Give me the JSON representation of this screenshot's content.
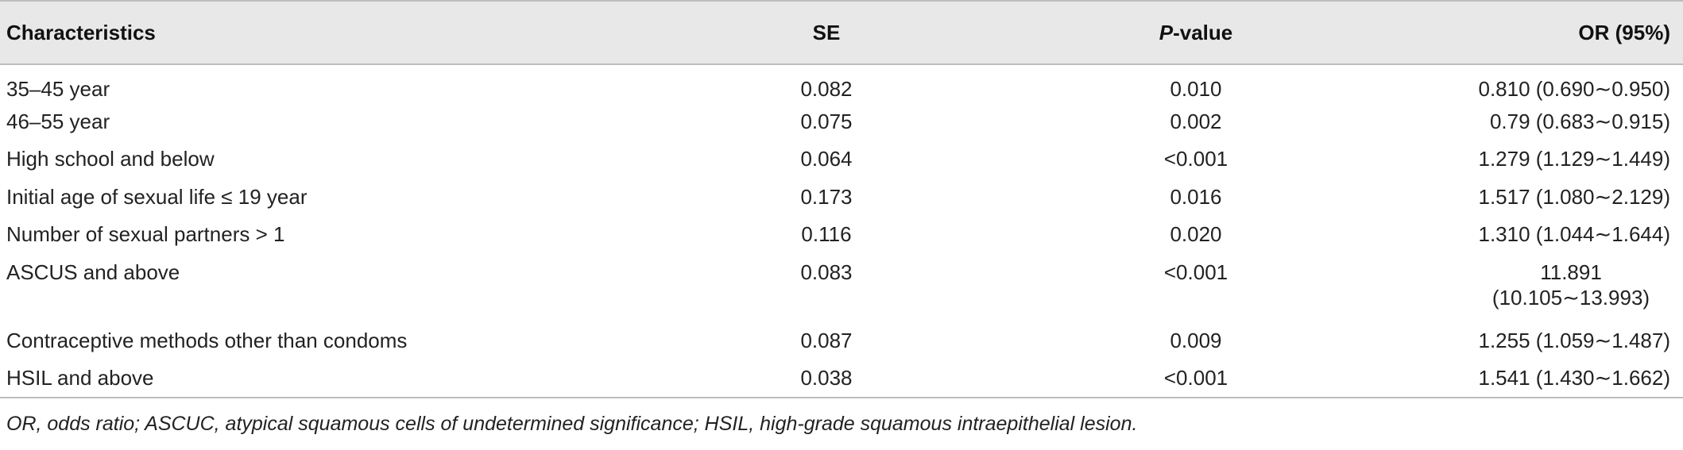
{
  "header": {
    "characteristics": "Characteristics",
    "se": "SE",
    "p_value_italic": "P",
    "p_value_rest": "-value",
    "or": "OR (95%)"
  },
  "rows": [
    {
      "characteristic": "35–45 year",
      "se": "0.082",
      "p": "0.010",
      "or": "0.810 (0.690∼0.950)"
    },
    {
      "characteristic": "46–55 year",
      "se": "0.075",
      "p": "0.002",
      "or": "0.79 (0.683∼0.915)"
    },
    {
      "characteristic": "High school and below",
      "se": "0.064",
      "p": "<0.001",
      "or": "1.279 (1.129∼1.449)"
    },
    {
      "characteristic": "Initial age of sexual life ≤ 19 year",
      "se": "0.173",
      "p": "0.016",
      "or": "1.517 (1.080∼2.129)"
    },
    {
      "characteristic": "Number of sexual partners > 1",
      "se": "0.116",
      "p": "0.020",
      "or": "1.310 (1.044∼1.644)"
    },
    {
      "characteristic": "ASCUS and above",
      "se": "0.083",
      "p": "<0.001",
      "or_line1": "11.891",
      "or_line2": "(10.105∼13.993)"
    },
    {
      "characteristic": "Contraceptive methods other than condoms",
      "se": "0.087",
      "p": "0.009",
      "or": "1.255 (1.059∼1.487)"
    },
    {
      "characteristic": "HSIL and above",
      "se": "0.038",
      "p": "<0.001",
      "or": "1.541 (1.430∼1.662)"
    }
  ],
  "footnote": "OR, odds ratio; ASCUC, atypical squamous cells of undetermined significance; HSIL, high-grade squamous intraepithelial lesion."
}
